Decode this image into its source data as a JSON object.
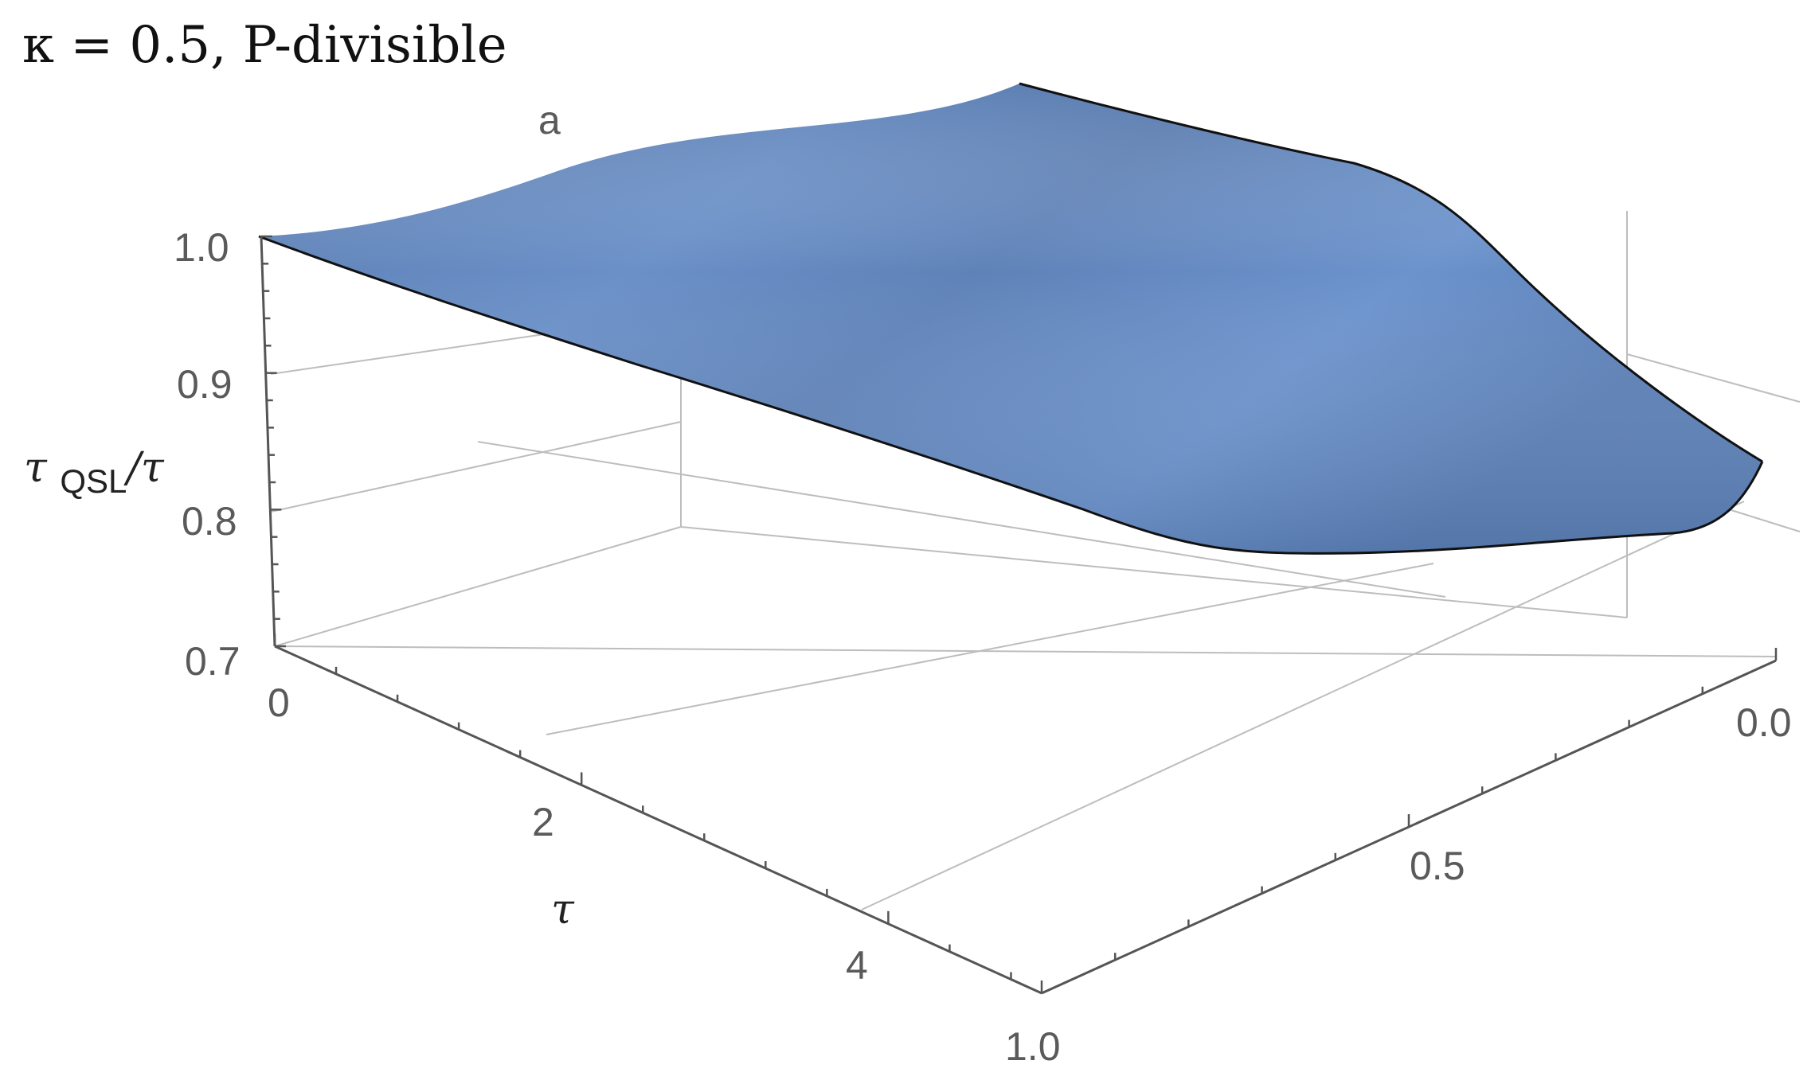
{
  "chart_data": {
    "type": "surface3d",
    "title": "κ = 0.5, P-divisible",
    "annotation": "a",
    "zlabel": "τQSL/τ",
    "xlabel": "τ",
    "ylabel": "",
    "z_axis": {
      "range": [
        0.7,
        1.0
      ],
      "ticks": [
        "1.0",
        "0.9",
        "0.8",
        "0.7"
      ]
    },
    "x_axis": {
      "range": [
        0,
        5
      ],
      "ticks": [
        "0",
        "2",
        "4"
      ]
    },
    "y_axis": {
      "range": [
        0.0,
        1.0
      ],
      "ticks": [
        "0.0",
        "0.5",
        "1.0"
      ]
    },
    "surface_color": "#6a8fc7",
    "surface_shade_color": "#5271a0",
    "grid": true
  }
}
